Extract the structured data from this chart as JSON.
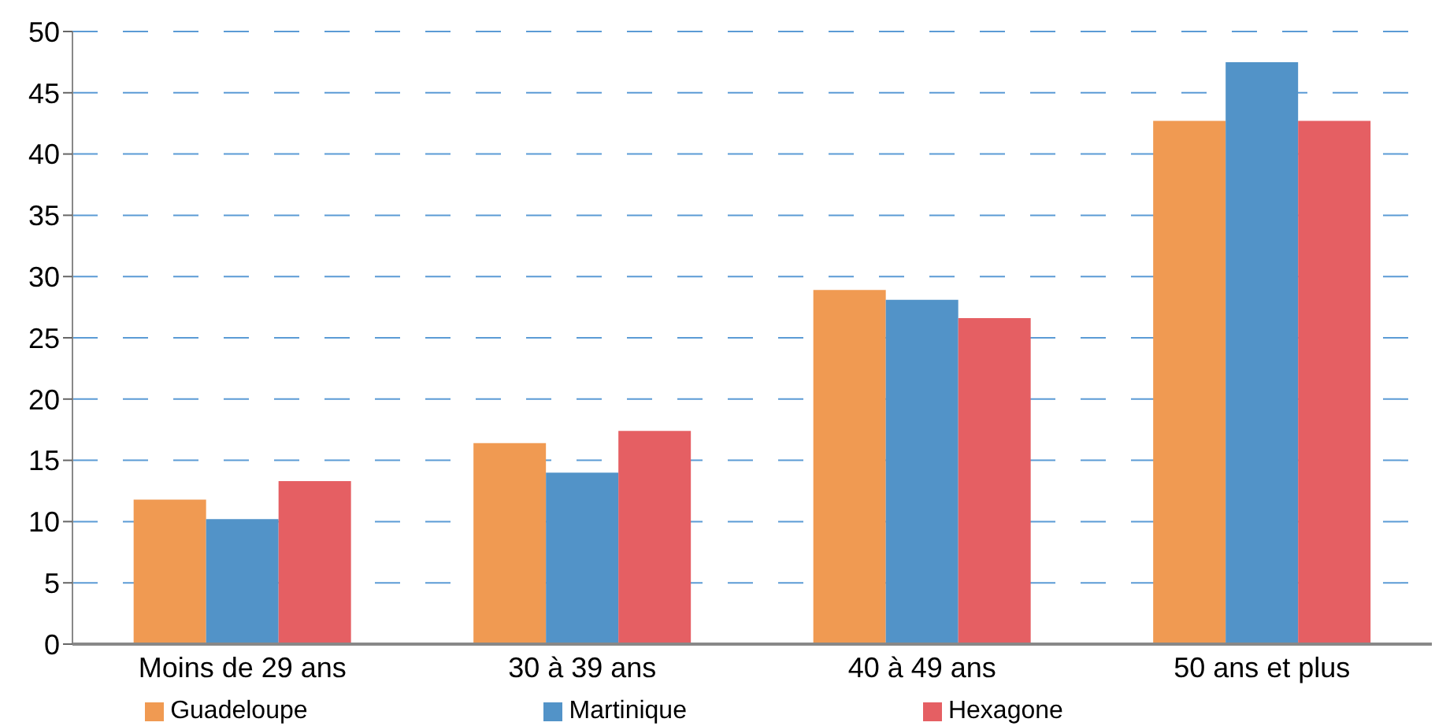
{
  "chart_data": {
    "type": "bar",
    "categories": [
      "Moins de 29 ans",
      "30 à 39 ans",
      "40 à 49 ans",
      "50 ans et plus"
    ],
    "series": [
      {
        "name": "Guadeloupe",
        "color": "#f09a52",
        "values": [
          11.8,
          16.4,
          28.9,
          42.7
        ]
      },
      {
        "name": "Martinique",
        "color": "#5293c8",
        "values": [
          10.2,
          14.0,
          28.1,
          47.5
        ]
      },
      {
        "name": "Hexagone",
        "color": "#e55f63",
        "values": [
          13.3,
          17.4,
          26.6,
          42.7
        ]
      }
    ],
    "ylim": [
      0,
      50
    ],
    "yticks": [
      0,
      5,
      10,
      15,
      20,
      25,
      30,
      35,
      40,
      45,
      50
    ],
    "grid": "y",
    "legend": "bottom"
  }
}
